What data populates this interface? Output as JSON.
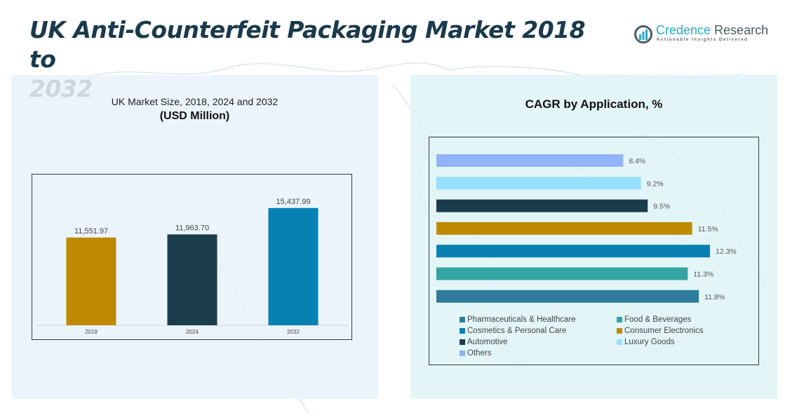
{
  "header": {
    "title_line1": "UK Anti-Counterfeit Packaging Market 2018 to",
    "title_line2": "2032"
  },
  "logo": {
    "name_part1": "Credence",
    "name_part2": " Research",
    "tagline": "Actionable Insights Delivered",
    "icon": "bar-chart-circle-icon"
  },
  "left_panel": {
    "subtitle": "UK Market Size, 2018, 2024 and 2032",
    "unit": "(USD Million)"
  },
  "right_panel": {
    "title": "CAGR by Application, %"
  },
  "chart_data": [
    {
      "type": "bar",
      "orientation": "vertical",
      "title": "UK Market Size, 2018, 2024 and 2032",
      "ylabel": "USD Million",
      "xlabel": "",
      "categories": [
        "2018",
        "2024",
        "2032"
      ],
      "values": [
        11551.97,
        11963.7,
        15437.99
      ],
      "value_labels": [
        "11,551.97",
        "11,963.70",
        "15,437.99"
      ],
      "colors": [
        "#be8b00",
        "#1b3c4b",
        "#0681b2"
      ],
      "ylim": [
        0,
        18000
      ],
      "grid": false,
      "legend": "none"
    },
    {
      "type": "bar",
      "orientation": "horizontal",
      "title": "CAGR by Application, %",
      "xlabel": "",
      "ylabel": "",
      "categories": [
        "Others",
        "Luxury Goods",
        "Automotive",
        "Consumer Electronics",
        "Cosmetics & Personal Care",
        "Food & Beverages",
        "Pharmaceuticals & Healthcare"
      ],
      "values": [
        8.4,
        9.2,
        9.5,
        11.5,
        12.3,
        11.3,
        11.8
      ],
      "value_labels": [
        "8.4%",
        "9.2%",
        "9.5%",
        "11.5%",
        "12.3%",
        "11.3%",
        "11.8%"
      ],
      "colors": [
        "#92b4fa",
        "#96e0fa",
        "#1b3c4b",
        "#be8b00",
        "#0681b2",
        "#33a3a3",
        "#2f7b9b"
      ],
      "xlim": [
        0,
        12.3
      ],
      "grid": false,
      "legend": "bottom",
      "legend_entries": [
        {
          "label": "Pharmaceuticals & Healthcare",
          "color": "#2f7b9b"
        },
        {
          "label": "Food & Beverages",
          "color": "#33a3a3"
        },
        {
          "label": "Cosmetics & Personal Care",
          "color": "#0681b2"
        },
        {
          "label": "Consumer Electronics",
          "color": "#be8b00"
        },
        {
          "label": "Automotive",
          "color": "#1b3c4b"
        },
        {
          "label": "Luxury Goods",
          "color": "#96e0fa"
        },
        {
          "label": "Others",
          "color": "#92b4fa"
        }
      ]
    }
  ]
}
